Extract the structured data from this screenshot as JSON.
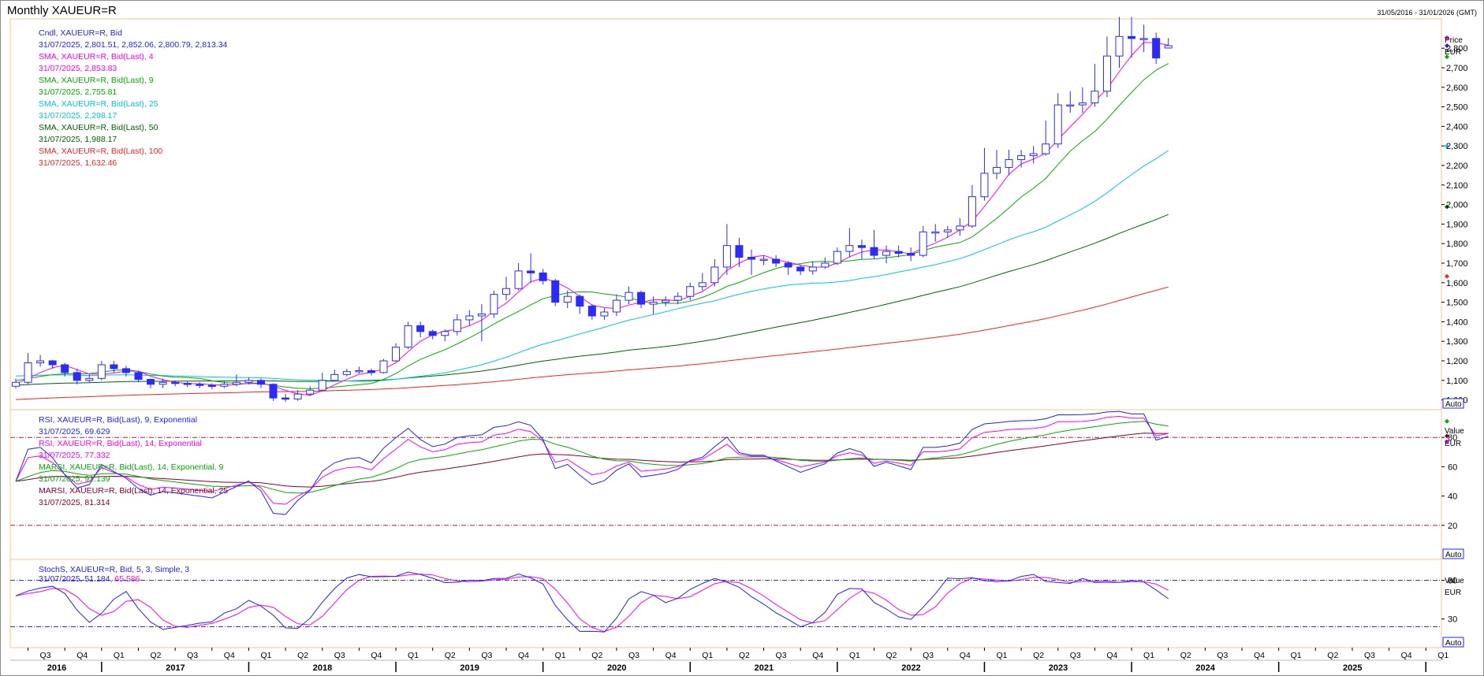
{
  "header": {
    "title": "Monthly XAUEUR=R",
    "date_range": "31/05/2016 - 31/01/2026 (GMT)"
  },
  "colors": {
    "candle": "#2b2bff",
    "sma4": "#ff00ff",
    "sma9": "#00b000",
    "sma25": "#00c8d8",
    "sma50": "#006400",
    "sma100": "#ff2020",
    "rsi9": "#2020ff",
    "rsi14": "#ff00ff",
    "marsi9": "#00b000",
    "marsi25": "#8b0030",
    "stoch_k": "#2020ff",
    "stoch_d": "#ff00ff",
    "panel_border": "#f3c98b"
  },
  "price_panel": {
    "legend": [
      {
        "text": "Cndl, XAUEUR=R, Bid",
        "color": "#2020ff"
      },
      {
        "text": "31/07/2025, 2,801.51, 2,852.06, 2,800.79, 2,813.34",
        "color": "#2020ff"
      },
      {
        "text": "SMA, XAUEUR=R, Bid(Last),  4",
        "color": "#ff00ff"
      },
      {
        "text": "31/07/2025, 2,853.83",
        "color": "#ff00ff"
      },
      {
        "text": "SMA, XAUEUR=R, Bid(Last),  9",
        "color": "#00b000"
      },
      {
        "text": "31/07/2025, 2,755.81",
        "color": "#00b000"
      },
      {
        "text": "SMA, XAUEUR=R, Bid(Last),  25",
        "color": "#00c8d8"
      },
      {
        "text": "31/07/2025, 2,298.17",
        "color": "#00c8d8"
      },
      {
        "text": "SMA, XAUEUR=R, Bid(Last),  50",
        "color": "#006400"
      },
      {
        "text": "31/07/2025, 1,988.17",
        "color": "#006400"
      },
      {
        "text": "SMA, XAUEUR=R, Bid(Last),  100",
        "color": "#ff2020"
      },
      {
        "text": "31/07/2025, 1,632.46",
        "color": "#ff2020"
      }
    ],
    "axis_title": "Price",
    "axis_unit": "EUR",
    "auto_label": "Auto"
  },
  "rsi_panel": {
    "legend": [
      {
        "text": "RSI, XAUEUR=R, Bid(Last),  9, Exponential",
        "color": "#2020ff"
      },
      {
        "text": "31/07/2025, 69.629",
        "color": "#2020ff"
      },
      {
        "text": "RSI, XAUEUR=R, Bid(Last),  14, Exponential",
        "color": "#ff00ff"
      },
      {
        "text": "31/07/2025, 77.332",
        "color": "#ff00ff"
      },
      {
        "text": "MARSI, XAUEUR=R, Bid(Last),  14, Exponential, 9",
        "color": "#00b000"
      },
      {
        "text": "31/07/2025, 91.139",
        "color": "#00b000"
      },
      {
        "text": "MARSI, XAUEUR=R, Bid(Last),  14, Exponential, 25",
        "color": "#8b0030"
      },
      {
        "text": "31/07/2025, 81.314",
        "color": "#8b0030"
      }
    ],
    "axis_title": "Value",
    "axis_unit": "EUR",
    "auto_label": "Auto"
  },
  "stoch_panel": {
    "legend": [
      {
        "text": "StochS, XAUEUR=R, Bid,  5, 3, Simple, 3",
        "color": "#2020ff"
      },
      {
        "text": "31/07/2025, 51.184, ",
        "color": "#2020ff"
      },
      {
        "text": "65.586",
        "color": "#ff00ff"
      }
    ],
    "axis_title": "Value",
    "axis_unit": "EUR",
    "auto_label": "Auto"
  },
  "chart_data": [
    {
      "type": "candlestick",
      "name": "Cndl, XAUEUR=R, Bid",
      "x_start": "2016-06",
      "x_end_axis": "2026-01",
      "ylim": [
        950,
        2950
      ],
      "y_ticks": [
        1000,
        1100,
        1200,
        1300,
        1400,
        1500,
        1600,
        1700,
        1800,
        1900,
        2000,
        2100,
        2200,
        2300,
        2400,
        2500,
        2600,
        2700,
        2800
      ],
      "x_quarter_labels": [
        "Q3",
        "Q4",
        "Q1",
        "Q2",
        "Q3",
        "Q4",
        "Q1",
        "Q2",
        "Q3",
        "Q4",
        "Q1",
        "Q2",
        "Q3",
        "Q4",
        "Q1",
        "Q2",
        "Q3",
        "Q4",
        "Q1",
        "Q2",
        "Q3",
        "Q4",
        "Q1",
        "Q2",
        "Q3",
        "Q4",
        "Q1",
        "Q2",
        "Q3",
        "Q4",
        "Q1",
        "Q2",
        "Q3",
        "Q4",
        "Q1",
        "Q2",
        "Q3",
        "Q4",
        "Q1"
      ],
      "x_year_labels": [
        "2016",
        "2017",
        "2018",
        "2019",
        "2020",
        "2021",
        "2022",
        "2023",
        "2024",
        "2025"
      ],
      "close": [
        1090,
        1190,
        1200,
        1180,
        1140,
        1100,
        1110,
        1180,
        1160,
        1140,
        1105,
        1080,
        1090,
        1085,
        1080,
        1075,
        1070,
        1080,
        1090,
        1100,
        1080,
        1010,
        1005,
        1030,
        1050,
        1100,
        1130,
        1145,
        1150,
        1140,
        1200,
        1270,
        1380,
        1350,
        1330,
        1350,
        1410,
        1430,
        1440,
        1540,
        1570,
        1660,
        1650,
        1610,
        1500,
        1530,
        1480,
        1430,
        1450,
        1510,
        1550,
        1490,
        1500,
        1510,
        1530,
        1580,
        1600,
        1680,
        1790,
        1730,
        1720,
        1720,
        1700,
        1680,
        1660,
        1680,
        1700,
        1760,
        1790,
        1780,
        1740,
        1760,
        1750,
        1740,
        1860,
        1860,
        1870,
        1890,
        2040,
        2160,
        2190,
        2230,
        2250,
        2260,
        2310,
        2510,
        2510,
        2520,
        2580,
        2760,
        2860,
        2850,
        2850,
        2750,
        2813
      ],
      "open": [
        1070,
        1090,
        1190,
        1200,
        1180,
        1140,
        1100,
        1110,
        1180,
        1160,
        1140,
        1105,
        1080,
        1090,
        1085,
        1080,
        1075,
        1070,
        1080,
        1090,
        1100,
        1080,
        1010,
        1005,
        1030,
        1050,
        1100,
        1130,
        1145,
        1150,
        1140,
        1200,
        1270,
        1380,
        1350,
        1330,
        1350,
        1410,
        1430,
        1440,
        1540,
        1570,
        1660,
        1650,
        1610,
        1500,
        1530,
        1480,
        1430,
        1450,
        1510,
        1550,
        1490,
        1500,
        1510,
        1530,
        1580,
        1600,
        1680,
        1790,
        1730,
        1720,
        1720,
        1700,
        1680,
        1660,
        1680,
        1700,
        1760,
        1790,
        1780,
        1740,
        1760,
        1750,
        1740,
        1860,
        1860,
        1870,
        1890,
        2040,
        2160,
        2190,
        2230,
        2250,
        2260,
        2310,
        2510,
        2510,
        2520,
        2580,
        2760,
        2860,
        2850,
        2850,
        2801
      ],
      "high": [
        1110,
        1240,
        1230,
        1205,
        1190,
        1160,
        1130,
        1200,
        1200,
        1175,
        1150,
        1110,
        1110,
        1100,
        1095,
        1090,
        1085,
        1095,
        1130,
        1115,
        1110,
        1085,
        1030,
        1050,
        1070,
        1140,
        1155,
        1160,
        1170,
        1160,
        1210,
        1290,
        1400,
        1400,
        1360,
        1360,
        1440,
        1460,
        1490,
        1560,
        1630,
        1700,
        1750,
        1670,
        1620,
        1560,
        1540,
        1490,
        1470,
        1540,
        1580,
        1560,
        1530,
        1530,
        1550,
        1600,
        1650,
        1720,
        1900,
        1830,
        1770,
        1740,
        1740,
        1710,
        1690,
        1710,
        1730,
        1780,
        1880,
        1820,
        1870,
        1790,
        1790,
        1780,
        1890,
        1900,
        1890,
        1930,
        2100,
        2290,
        2280,
        2280,
        2280,
        2300,
        2430,
        2570,
        2580,
        2600,
        2720,
        2860,
        2960,
        2960,
        2920,
        2880,
        2852
      ],
      "low": [
        1060,
        1080,
        1170,
        1160,
        1120,
        1080,
        1090,
        1100,
        1140,
        1120,
        1090,
        1060,
        1060,
        1070,
        1065,
        1060,
        1055,
        1060,
        1070,
        1080,
        1060,
        995,
        990,
        995,
        1020,
        1045,
        1095,
        1120,
        1135,
        1125,
        1135,
        1195,
        1260,
        1320,
        1310,
        1300,
        1330,
        1380,
        1300,
        1420,
        1510,
        1560,
        1600,
        1590,
        1480,
        1470,
        1440,
        1410,
        1410,
        1430,
        1490,
        1470,
        1440,
        1480,
        1490,
        1510,
        1560,
        1580,
        1640,
        1680,
        1640,
        1690,
        1680,
        1640,
        1640,
        1640,
        1670,
        1690,
        1730,
        1720,
        1720,
        1700,
        1730,
        1710,
        1730,
        1810,
        1830,
        1840,
        1880,
        2020,
        2130,
        2150,
        2190,
        2210,
        2250,
        2290,
        2470,
        2470,
        2500,
        2550,
        2700,
        2750,
        2780,
        2720,
        2800
      ],
      "sma4_last": 2853.83,
      "sma9_last": 2755.81,
      "sma25_last": 2298.17,
      "sma50_last": 1988.17,
      "sma100_last": 1632.46
    },
    {
      "type": "line",
      "name": "RSI panel",
      "ylim": [
        0,
        100
      ],
      "y_ticks": [
        20,
        40,
        60,
        80
      ],
      "overbought": 80,
      "oversold": 20
    },
    {
      "type": "line",
      "name": "StochS",
      "ylim": [
        -5,
        105
      ],
      "y_ticks": [
        30,
        80
      ],
      "overbought": 80,
      "oversold": 20
    }
  ]
}
